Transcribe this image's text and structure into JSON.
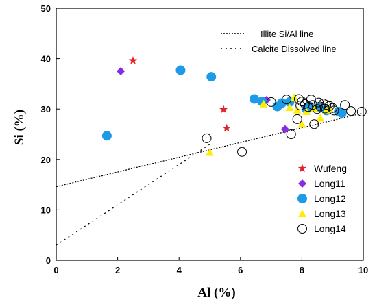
{
  "chart_data": {
    "type": "scatter",
    "title": "",
    "xlabel": "Al (%)",
    "ylabel": "Si (%)",
    "xlim": [
      0,
      10
    ],
    "ylim": [
      0,
      50
    ],
    "xticks": [
      0,
      2,
      4,
      6,
      8,
      10
    ],
    "yticks": [
      0,
      10,
      20,
      30,
      40,
      50
    ],
    "grid": false,
    "legend_position": "right",
    "reference_lines": [
      {
        "name": "Illite Si/Al line",
        "style": "dense-dotted",
        "from": [
          0,
          14.6
        ],
        "to": [
          10,
          29.2
        ]
      },
      {
        "name": "Calcite Dissolved line",
        "style": "sparse-dotted",
        "from": [
          0,
          3.0
        ],
        "to": [
          5.0,
          23.0
        ]
      }
    ],
    "series": [
      {
        "name": "Wufeng",
        "marker": "star",
        "color": "#e3232b",
        "points": [
          [
            2.5,
            39.6
          ],
          [
            5.45,
            29.9
          ],
          [
            5.55,
            26.2
          ]
        ]
      },
      {
        "name": "Long11",
        "marker": "diamond",
        "color": "#8a2be2",
        "points": [
          [
            2.1,
            37.5
          ],
          [
            6.85,
            31.8
          ],
          [
            7.45,
            26.0
          ]
        ]
      },
      {
        "name": "Long12",
        "marker": "circle",
        "color": "#1e9be6",
        "points": [
          [
            1.65,
            24.7
          ],
          [
            4.05,
            37.7
          ],
          [
            5.05,
            36.4
          ],
          [
            6.45,
            32.0
          ],
          [
            6.7,
            31.5
          ],
          [
            7.2,
            30.5
          ],
          [
            7.35,
            31.2
          ],
          [
            7.6,
            31.4
          ],
          [
            8.15,
            30.0
          ],
          [
            8.25,
            30.5
          ],
          [
            8.55,
            30.3
          ],
          [
            8.8,
            29.7
          ],
          [
            9.2,
            29.5
          ],
          [
            9.3,
            29.2
          ]
        ]
      },
      {
        "name": "Long13",
        "marker": "triangle",
        "color": "#ffee00",
        "points": [
          [
            5.0,
            21.4
          ],
          [
            6.75,
            31.0
          ],
          [
            7.6,
            30.3
          ],
          [
            7.75,
            32.3
          ],
          [
            7.85,
            29.8
          ],
          [
            8.0,
            27.0
          ],
          [
            8.15,
            29.5
          ],
          [
            8.4,
            30.1
          ],
          [
            8.6,
            28.2
          ],
          [
            8.8,
            29.8
          ],
          [
            8.9,
            30.0
          ]
        ]
      },
      {
        "name": "Long14",
        "marker": "open-circle",
        "color": "#000000",
        "points": [
          [
            4.9,
            24.2
          ],
          [
            6.05,
            21.5
          ],
          [
            7.0,
            31.4
          ],
          [
            7.5,
            31.9
          ],
          [
            7.65,
            25.0
          ],
          [
            7.85,
            28.0
          ],
          [
            7.9,
            32.0
          ],
          [
            7.95,
            30.7
          ],
          [
            8.0,
            31.5
          ],
          [
            8.1,
            31.0
          ],
          [
            8.2,
            30.4
          ],
          [
            8.3,
            31.9
          ],
          [
            8.35,
            30.8
          ],
          [
            8.4,
            27.0
          ],
          [
            8.5,
            30.0
          ],
          [
            8.55,
            31.3
          ],
          [
            8.6,
            30.5
          ],
          [
            8.7,
            31.1
          ],
          [
            8.75,
            30.1
          ],
          [
            8.8,
            30.8
          ],
          [
            8.9,
            30.6
          ],
          [
            9.0,
            30.2
          ],
          [
            9.05,
            29.7
          ],
          [
            9.4,
            30.8
          ],
          [
            9.6,
            29.6
          ],
          [
            9.95,
            29.5
          ]
        ]
      }
    ]
  }
}
